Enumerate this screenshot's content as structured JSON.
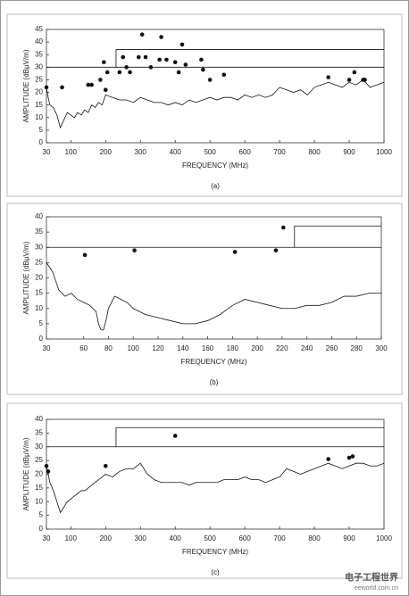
{
  "chart_data": [
    {
      "type": "line",
      "y_label": "AMPLITUDE (dBµV/m)",
      "x_label": "FREQUENCY (MHz)",
      "caption": "(a)",
      "xlim": [
        30,
        1000
      ],
      "xticks": [
        30,
        100,
        200,
        300,
        400,
        500,
        600,
        700,
        800,
        900,
        1000
      ],
      "ylim": [
        0,
        45
      ],
      "yticks": [
        0,
        5,
        10,
        15,
        20,
        25,
        30,
        35,
        40,
        45
      ],
      "series": [
        {
          "color": "#111111",
          "marker": false,
          "x": [
            30,
            35,
            40,
            50,
            60,
            70,
            80,
            90,
            100,
            110,
            120,
            130,
            140,
            150,
            160,
            170,
            180,
            190,
            200,
            220,
            240,
            260,
            280,
            300,
            320,
            340,
            360,
            380,
            400,
            420,
            440,
            460,
            480,
            500,
            520,
            540,
            560,
            580,
            600,
            620,
            640,
            660,
            680,
            700,
            720,
            740,
            760,
            780,
            800,
            820,
            840,
            860,
            880,
            900,
            920,
            940,
            960,
            980,
            1000
          ],
          "values": [
            22,
            18,
            15,
            14,
            11,
            6,
            9,
            12,
            11,
            10,
            12,
            11,
            13,
            12,
            15,
            14,
            16,
            15,
            19,
            18,
            17,
            17,
            16,
            18,
            17,
            16,
            16,
            15,
            16,
            15,
            17,
            16,
            17,
            18,
            17,
            18,
            18,
            17,
            19,
            18,
            19,
            18,
            19,
            22,
            21,
            20,
            21,
            19,
            22,
            23,
            24,
            23,
            22,
            24,
            23,
            25,
            22,
            23,
            24
          ]
        },
        {
          "color": "#111111",
          "marker": false,
          "x": [
            30,
            230,
            230,
            1000
          ],
          "values": [
            30,
            30,
            37,
            37
          ]
        },
        {
          "color": "#111111",
          "marker": false,
          "x": [
            230,
            1000
          ],
          "values": [
            30,
            30
          ]
        },
        {
          "color": "#111111",
          "marker": true,
          "x": [
            30,
            75,
            150,
            160,
            185,
            195,
            200,
            205,
            240,
            250,
            260,
            270,
            295,
            305,
            315,
            330,
            355,
            360,
            375,
            400,
            410,
            420,
            430,
            475,
            480,
            500,
            540,
            840,
            900,
            915,
            940,
            945
          ],
          "values": [
            22,
            22,
            23,
            23,
            25,
            32,
            21,
            28,
            28,
            34,
            30,
            28,
            34,
            43,
            34,
            30,
            33,
            42,
            33,
            32,
            28,
            39,
            31,
            33,
            29,
            25,
            27,
            26,
            25,
            28,
            25,
            25
          ]
        }
      ]
    },
    {
      "type": "line",
      "y_label": "AMPLITUDE (dBµV/m)",
      "x_label": "FREQUENCY (MHz)",
      "caption": "(b)",
      "xlim": [
        30,
        300
      ],
      "xticks": [
        30,
        60,
        80,
        100,
        120,
        140,
        160,
        180,
        200,
        220,
        240,
        260,
        280,
        300
      ],
      "ylim": [
        0,
        40
      ],
      "yticks": [
        0,
        5,
        10,
        15,
        20,
        25,
        30,
        35,
        40
      ],
      "series": [
        {
          "color": "#111111",
          "marker": false,
          "x": [
            30,
            35,
            40,
            45,
            50,
            55,
            60,
            65,
            70,
            72,
            74,
            76,
            78,
            80,
            85,
            90,
            95,
            100,
            110,
            120,
            130,
            140,
            150,
            160,
            170,
            180,
            190,
            200,
            210,
            220,
            230,
            240,
            250,
            260,
            270,
            280,
            290,
            300
          ],
          "values": [
            25,
            22,
            16,
            14,
            15,
            13,
            12,
            11,
            9,
            5,
            3,
            3,
            6,
            10,
            14,
            13,
            12,
            10,
            8,
            7,
            6,
            5,
            5,
            6,
            8,
            11,
            13,
            12,
            11,
            10,
            10,
            11,
            11,
            12,
            14,
            14,
            15,
            15
          ]
        },
        {
          "color": "#111111",
          "marker": false,
          "x": [
            30,
            230,
            230,
            300
          ],
          "values": [
            30,
            30,
            37,
            37
          ]
        },
        {
          "color": "#111111",
          "marker": false,
          "x": [
            230,
            300
          ],
          "values": [
            30,
            30
          ]
        },
        {
          "color": "#111111",
          "marker": true,
          "x": [
            61,
            101,
            182,
            215,
            221
          ],
          "values": [
            27.5,
            29,
            28.5,
            29,
            36.5
          ]
        }
      ]
    },
    {
      "type": "line",
      "y_label": "AMPLITUDE (dBµV/m)",
      "x_label": "FREQUENCY (MHz)",
      "caption": "(c)",
      "xlim": [
        30,
        1000
      ],
      "xticks": [
        30,
        100,
        200,
        300,
        400,
        500,
        600,
        700,
        800,
        900,
        1000
      ],
      "ylim": [
        0,
        40
      ],
      "yticks": [
        0,
        5,
        10,
        15,
        20,
        25,
        30,
        35,
        40
      ],
      "series": [
        {
          "color": "#111111",
          "marker": false,
          "x": [
            30,
            35,
            40,
            50,
            60,
            70,
            80,
            90,
            100,
            110,
            120,
            130,
            140,
            150,
            160,
            170,
            180,
            190,
            200,
            220,
            240,
            260,
            280,
            300,
            320,
            340,
            360,
            380,
            400,
            420,
            440,
            460,
            480,
            500,
            520,
            540,
            560,
            580,
            600,
            620,
            640,
            660,
            680,
            700,
            720,
            740,
            760,
            780,
            800,
            820,
            840,
            860,
            880,
            900,
            920,
            940,
            960,
            980,
            1000
          ],
          "values": [
            23,
            20,
            17,
            14,
            10,
            6,
            8,
            10,
            11,
            12,
            13,
            14,
            14,
            15,
            16,
            17,
            18,
            19,
            20,
            19,
            21,
            22,
            22,
            24,
            20,
            18,
            17,
            17,
            17,
            17,
            16,
            17,
            17,
            17,
            17,
            18,
            18,
            18,
            19,
            18,
            18,
            17,
            18,
            19,
            22,
            21,
            20,
            21,
            22,
            23,
            24,
            23,
            22,
            23,
            24,
            24,
            23,
            23,
            24
          ]
        },
        {
          "color": "#111111",
          "marker": false,
          "x": [
            30,
            230,
            230,
            1000
          ],
          "values": [
            30,
            30,
            37,
            37
          ]
        },
        {
          "color": "#111111",
          "marker": false,
          "x": [
            230,
            1000
          ],
          "values": [
            30,
            30
          ]
        },
        {
          "color": "#111111",
          "marker": true,
          "x": [
            30,
            35,
            200,
            400,
            840,
            900,
            910
          ],
          "values": [
            23,
            21,
            23,
            34,
            25.5,
            26,
            26.5
          ]
        }
      ]
    }
  ],
  "logo": {
    "name": "电子工程世界",
    "url": "eeworld.com.cn"
  }
}
